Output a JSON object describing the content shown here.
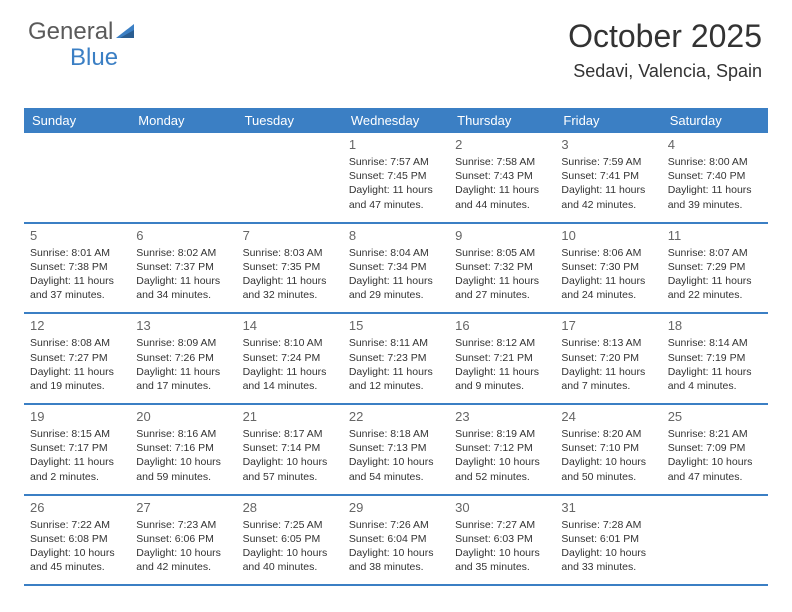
{
  "logo": {
    "text1": "General",
    "text2": "Blue"
  },
  "header": {
    "month": "October 2025",
    "location": "Sedavi, Valencia, Spain"
  },
  "colors": {
    "brand": "#3b7fc4",
    "text": "#333333",
    "muted": "#666666",
    "bg": "#ffffff"
  },
  "dayNames": [
    "Sunday",
    "Monday",
    "Tuesday",
    "Wednesday",
    "Thursday",
    "Friday",
    "Saturday"
  ],
  "weeks": [
    [
      {
        "n": "",
        "sr": "",
        "ss": "",
        "dl": ""
      },
      {
        "n": "",
        "sr": "",
        "ss": "",
        "dl": ""
      },
      {
        "n": "",
        "sr": "",
        "ss": "",
        "dl": ""
      },
      {
        "n": "1",
        "sr": "7:57 AM",
        "ss": "7:45 PM",
        "dl": "11 hours and 47 minutes."
      },
      {
        "n": "2",
        "sr": "7:58 AM",
        "ss": "7:43 PM",
        "dl": "11 hours and 44 minutes."
      },
      {
        "n": "3",
        "sr": "7:59 AM",
        "ss": "7:41 PM",
        "dl": "11 hours and 42 minutes."
      },
      {
        "n": "4",
        "sr": "8:00 AM",
        "ss": "7:40 PM",
        "dl": "11 hours and 39 minutes."
      }
    ],
    [
      {
        "n": "5",
        "sr": "8:01 AM",
        "ss": "7:38 PM",
        "dl": "11 hours and 37 minutes."
      },
      {
        "n": "6",
        "sr": "8:02 AM",
        "ss": "7:37 PM",
        "dl": "11 hours and 34 minutes."
      },
      {
        "n": "7",
        "sr": "8:03 AM",
        "ss": "7:35 PM",
        "dl": "11 hours and 32 minutes."
      },
      {
        "n": "8",
        "sr": "8:04 AM",
        "ss": "7:34 PM",
        "dl": "11 hours and 29 minutes."
      },
      {
        "n": "9",
        "sr": "8:05 AM",
        "ss": "7:32 PM",
        "dl": "11 hours and 27 minutes."
      },
      {
        "n": "10",
        "sr": "8:06 AM",
        "ss": "7:30 PM",
        "dl": "11 hours and 24 minutes."
      },
      {
        "n": "11",
        "sr": "8:07 AM",
        "ss": "7:29 PM",
        "dl": "11 hours and 22 minutes."
      }
    ],
    [
      {
        "n": "12",
        "sr": "8:08 AM",
        "ss": "7:27 PM",
        "dl": "11 hours and 19 minutes."
      },
      {
        "n": "13",
        "sr": "8:09 AM",
        "ss": "7:26 PM",
        "dl": "11 hours and 17 minutes."
      },
      {
        "n": "14",
        "sr": "8:10 AM",
        "ss": "7:24 PM",
        "dl": "11 hours and 14 minutes."
      },
      {
        "n": "15",
        "sr": "8:11 AM",
        "ss": "7:23 PM",
        "dl": "11 hours and 12 minutes."
      },
      {
        "n": "16",
        "sr": "8:12 AM",
        "ss": "7:21 PM",
        "dl": "11 hours and 9 minutes."
      },
      {
        "n": "17",
        "sr": "8:13 AM",
        "ss": "7:20 PM",
        "dl": "11 hours and 7 minutes."
      },
      {
        "n": "18",
        "sr": "8:14 AM",
        "ss": "7:19 PM",
        "dl": "11 hours and 4 minutes."
      }
    ],
    [
      {
        "n": "19",
        "sr": "8:15 AM",
        "ss": "7:17 PM",
        "dl": "11 hours and 2 minutes."
      },
      {
        "n": "20",
        "sr": "8:16 AM",
        "ss": "7:16 PM",
        "dl": "10 hours and 59 minutes."
      },
      {
        "n": "21",
        "sr": "8:17 AM",
        "ss": "7:14 PM",
        "dl": "10 hours and 57 minutes."
      },
      {
        "n": "22",
        "sr": "8:18 AM",
        "ss": "7:13 PM",
        "dl": "10 hours and 54 minutes."
      },
      {
        "n": "23",
        "sr": "8:19 AM",
        "ss": "7:12 PM",
        "dl": "10 hours and 52 minutes."
      },
      {
        "n": "24",
        "sr": "8:20 AM",
        "ss": "7:10 PM",
        "dl": "10 hours and 50 minutes."
      },
      {
        "n": "25",
        "sr": "8:21 AM",
        "ss": "7:09 PM",
        "dl": "10 hours and 47 minutes."
      }
    ],
    [
      {
        "n": "26",
        "sr": "7:22 AM",
        "ss": "6:08 PM",
        "dl": "10 hours and 45 minutes."
      },
      {
        "n": "27",
        "sr": "7:23 AM",
        "ss": "6:06 PM",
        "dl": "10 hours and 42 minutes."
      },
      {
        "n": "28",
        "sr": "7:25 AM",
        "ss": "6:05 PM",
        "dl": "10 hours and 40 minutes."
      },
      {
        "n": "29",
        "sr": "7:26 AM",
        "ss": "6:04 PM",
        "dl": "10 hours and 38 minutes."
      },
      {
        "n": "30",
        "sr": "7:27 AM",
        "ss": "6:03 PM",
        "dl": "10 hours and 35 minutes."
      },
      {
        "n": "31",
        "sr": "7:28 AM",
        "ss": "6:01 PM",
        "dl": "10 hours and 33 minutes."
      },
      {
        "n": "",
        "sr": "",
        "ss": "",
        "dl": ""
      }
    ]
  ],
  "labels": {
    "sunrise": "Sunrise:",
    "sunset": "Sunset:",
    "daylight": "Daylight:"
  }
}
